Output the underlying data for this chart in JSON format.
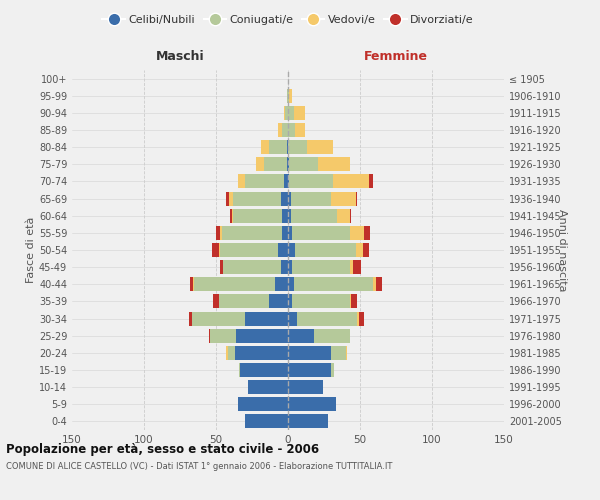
{
  "age_groups": [
    "0-4",
    "5-9",
    "10-14",
    "15-19",
    "20-24",
    "25-29",
    "30-34",
    "35-39",
    "40-44",
    "45-49",
    "50-54",
    "55-59",
    "60-64",
    "65-69",
    "70-74",
    "75-79",
    "80-84",
    "85-89",
    "90-94",
    "95-99",
    "100+"
  ],
  "birth_years": [
    "2001-2005",
    "1996-2000",
    "1991-1995",
    "1986-1990",
    "1981-1985",
    "1976-1980",
    "1971-1975",
    "1966-1970",
    "1961-1965",
    "1956-1960",
    "1951-1955",
    "1946-1950",
    "1941-1945",
    "1936-1940",
    "1931-1935",
    "1926-1930",
    "1921-1925",
    "1916-1920",
    "1911-1915",
    "1906-1910",
    "≤ 1905"
  ],
  "males": {
    "celibi": [
      30,
      35,
      28,
      33,
      37,
      36,
      30,
      13,
      9,
      5,
      7,
      4,
      4,
      5,
      3,
      1,
      1,
      0,
      0,
      0,
      0
    ],
    "coniugati": [
      0,
      0,
      0,
      1,
      5,
      18,
      37,
      35,
      56,
      40,
      40,
      42,
      34,
      33,
      27,
      16,
      12,
      4,
      2,
      1,
      0
    ],
    "vedovi": [
      0,
      0,
      0,
      0,
      1,
      0,
      0,
      0,
      1,
      0,
      1,
      1,
      1,
      3,
      5,
      5,
      6,
      3,
      1,
      0,
      0
    ],
    "divorziati": [
      0,
      0,
      0,
      0,
      0,
      1,
      2,
      4,
      2,
      2,
      5,
      3,
      1,
      2,
      0,
      0,
      0,
      0,
      0,
      0,
      0
    ]
  },
  "females": {
    "nubili": [
      28,
      33,
      24,
      30,
      30,
      18,
      6,
      3,
      4,
      3,
      5,
      3,
      2,
      2,
      1,
      1,
      0,
      0,
      0,
      0,
      0
    ],
    "coniugate": [
      0,
      0,
      0,
      2,
      10,
      25,
      42,
      40,
      55,
      40,
      42,
      40,
      32,
      28,
      30,
      20,
      13,
      5,
      4,
      1,
      0
    ],
    "vedove": [
      0,
      0,
      0,
      0,
      1,
      0,
      1,
      1,
      2,
      2,
      5,
      10,
      9,
      17,
      25,
      22,
      18,
      7,
      8,
      2,
      0
    ],
    "divorziate": [
      0,
      0,
      0,
      0,
      0,
      0,
      4,
      4,
      4,
      6,
      4,
      4,
      1,
      1,
      3,
      0,
      0,
      0,
      0,
      0,
      0
    ]
  },
  "colors": {
    "celibi": "#3a6daa",
    "coniugati": "#b5c99a",
    "vedovi": "#f5c96a",
    "divorziati": "#c0302a"
  },
  "xlim": 150,
  "title": "Popolazione per età, sesso e stato civile - 2006",
  "subtitle": "COMUNE DI ALICE CASTELLO (VC) - Dati ISTAT 1° gennaio 2006 - Elaborazione TUTTITALIA.IT",
  "ylabel_left": "Fasce di età",
  "ylabel_right": "Anni di nascita",
  "xlabel_left": "Maschi",
  "xlabel_right": "Femmine",
  "legend_labels": [
    "Celibi/Nubili",
    "Coniugati/e",
    "Vedovi/e",
    "Divorziati/e"
  ],
  "bg_color": "#f0f0f0",
  "grid_color": "#cccccc"
}
